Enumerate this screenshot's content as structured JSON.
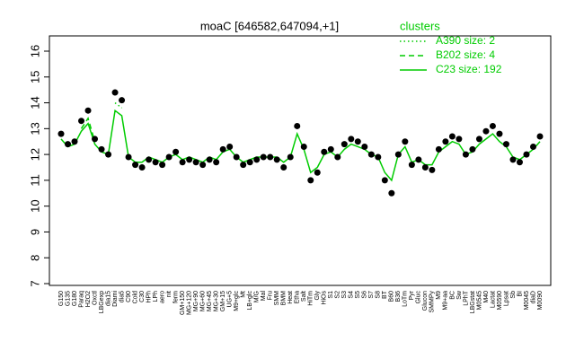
{
  "chart_data": {
    "type": "line",
    "title": "moaC [646582,647094,+1]",
    "legend_title": "clusters",
    "legend_position": "top-right",
    "point_color": "#000000",
    "categories": [
      "G150",
      "G135",
      "G180",
      "Paraq",
      "H2O2",
      "Oxctl",
      "LBGexp",
      "dia15",
      "Diami",
      "dia5",
      "C90",
      "Cold",
      "C30",
      "HPh",
      "LPh",
      "aero",
      "nit",
      "ferm",
      "GM+150",
      "MG+120",
      "MG+90",
      "MG+60",
      "MG+45",
      "MG+30",
      "GM+15",
      "UG+5",
      "M9+glc",
      "Mt",
      "LB+glc",
      "M/G",
      "Mal",
      "Fru",
      "SMM",
      "BMM",
      "Heat",
      "Etha",
      "Salt",
      "HiTm",
      "Gly",
      "HiOs",
      "S1",
      "S2",
      "S3",
      "S4",
      "S5",
      "S6",
      "S7",
      "S8",
      "BT",
      "B60",
      "B36",
      "LoTm",
      "Pyr",
      "Gluc",
      "Glucon",
      "SMMPy",
      "M9",
      "M9+aa",
      "BC",
      "Sw",
      "LPhT",
      "LBGstat",
      "M0545",
      "M40",
      "Lactat",
      "M0590",
      "Lpsat",
      "Sb",
      "BI",
      "M0045",
      "diaD",
      "M0090"
    ],
    "values": [
      12.8,
      12.4,
      12.5,
      13.3,
      13.7,
      12.6,
      12.2,
      12.0,
      14.4,
      14.1,
      11.9,
      11.6,
      11.5,
      11.8,
      11.7,
      11.6,
      11.9,
      12.1,
      11.7,
      11.8,
      11.7,
      11.6,
      11.8,
      11.7,
      12.2,
      12.3,
      11.9,
      11.6,
      11.7,
      11.8,
      11.9,
      11.9,
      11.8,
      11.5,
      11.9,
      13.1,
      12.3,
      11.0,
      11.3,
      12.1,
      12.2,
      11.9,
      12.4,
      12.6,
      12.5,
      12.3,
      12.0,
      11.9,
      11.0,
      10.5,
      12.0,
      12.5,
      11.6,
      11.8,
      11.5,
      11.4,
      12.2,
      12.5,
      12.7,
      12.6,
      12.0,
      12.2,
      12.6,
      12.9,
      13.1,
      12.8,
      12.4,
      11.8,
      11.7,
      12.0,
      12.3,
      12.7
    ],
    "series": [
      {
        "name": "A390 size: 2",
        "color": "#00cc00",
        "dash": "dotted",
        "values": [
          null,
          null,
          null,
          null,
          null,
          null,
          null,
          null,
          14.0,
          13.8,
          null,
          null,
          null,
          null,
          null,
          null,
          null,
          null,
          null,
          null,
          null,
          null,
          null,
          null,
          null,
          null,
          null,
          null,
          null,
          null,
          null,
          null,
          null,
          null,
          null,
          null,
          null,
          null,
          null,
          null,
          null,
          null,
          null,
          null,
          null,
          null,
          null,
          null,
          null,
          null,
          null,
          null,
          null,
          null,
          null,
          null,
          null,
          null,
          null,
          null,
          null,
          null,
          null,
          null,
          null,
          null,
          null,
          null,
          null,
          null,
          null,
          null
        ]
      },
      {
        "name": "B202 size: 4",
        "color": "#00cc00",
        "dash": "dashed",
        "values": [
          null,
          null,
          null,
          13.0,
          13.4,
          12.5,
          null,
          null,
          null,
          null,
          null,
          null,
          null,
          null,
          null,
          null,
          null,
          null,
          null,
          null,
          null,
          null,
          null,
          null,
          null,
          null,
          null,
          null,
          null,
          null,
          null,
          null,
          null,
          null,
          null,
          null,
          null,
          null,
          null,
          null,
          null,
          null,
          null,
          null,
          null,
          null,
          null,
          null,
          null,
          null,
          null,
          null,
          null,
          null,
          null,
          null,
          null,
          null,
          null,
          null,
          null,
          null,
          null,
          null,
          null,
          null,
          null,
          null,
          null,
          null,
          null,
          null
        ]
      },
      {
        "name": "C23 size: 192",
        "color": "#00cc00",
        "dash": "solid",
        "values": [
          12.6,
          12.3,
          12.4,
          12.9,
          13.2,
          12.4,
          12.1,
          12.0,
          13.7,
          13.5,
          11.9,
          11.7,
          11.7,
          11.9,
          11.8,
          11.7,
          11.9,
          12.0,
          11.8,
          11.9,
          11.8,
          11.7,
          11.9,
          11.8,
          12.1,
          12.2,
          11.9,
          11.7,
          11.8,
          11.9,
          11.9,
          11.9,
          11.9,
          11.7,
          11.9,
          12.8,
          12.2,
          11.3,
          11.5,
          12.0,
          12.1,
          11.9,
          12.2,
          12.4,
          12.3,
          12.2,
          12.0,
          11.9,
          11.3,
          11.0,
          12.0,
          12.3,
          11.7,
          11.8,
          11.6,
          11.6,
          12.1,
          12.3,
          12.5,
          12.4,
          12.0,
          12.1,
          12.4,
          12.6,
          12.8,
          12.5,
          12.3,
          11.9,
          11.8,
          12.0,
          12.2,
          12.5
        ]
      }
    ],
    "ylim": [
      7,
      16
    ],
    "yticks": [
      7,
      8,
      9,
      10,
      11,
      12,
      13,
      14,
      15,
      16
    ]
  }
}
